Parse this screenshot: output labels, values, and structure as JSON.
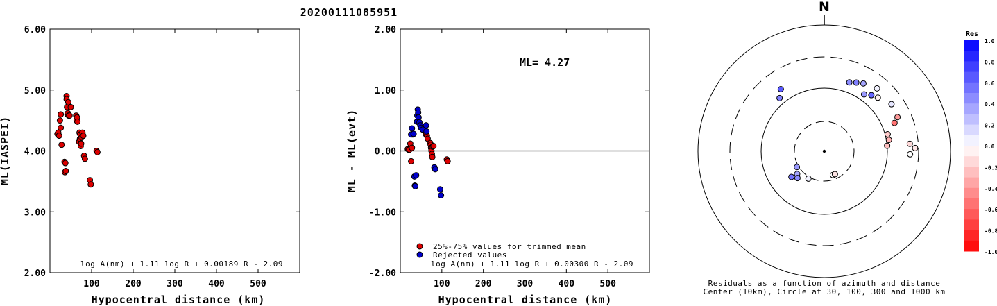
{
  "title": "20200111085951",
  "colors": {
    "red": "#dd0000",
    "blue": "#0000cc",
    "black": "#000000"
  },
  "chart_data": [
    {
      "type": "scatter",
      "ylabel": "ML(IASPEI)",
      "xlabel": "Hypocentral distance (km)",
      "xlim": [
        0,
        600
      ],
      "ylim": [
        2.0,
        6.0
      ],
      "x_ticks": [
        "100",
        "200",
        "300",
        "400",
        "500"
      ],
      "y_ticks": [
        "2.00",
        "3.00",
        "4.00",
        "5.00",
        "6.00"
      ],
      "formula": "log A(nm) + 1.11 log R + 0.00189 R - 2.09",
      "series": [
        {
          "color": "#dd0000",
          "points": [
            [
              18,
              4.28
            ],
            [
              20,
              4.3
            ],
            [
              22,
              4.25
            ],
            [
              24,
              4.5
            ],
            [
              26,
              4.6
            ],
            [
              26,
              4.38
            ],
            [
              28,
              4.1
            ],
            [
              35,
              3.82
            ],
            [
              37,
              3.8
            ],
            [
              36,
              3.65
            ],
            [
              38,
              3.67
            ],
            [
              40,
              4.9
            ],
            [
              40,
              4.85
            ],
            [
              41,
              4.72
            ],
            [
              42,
              4.6
            ],
            [
              43,
              4.62
            ],
            [
              44,
              4.8
            ],
            [
              45,
              4.58
            ],
            [
              47,
              4.58
            ],
            [
              50,
              4.72
            ],
            [
              63,
              4.58
            ],
            [
              64,
              4.5
            ],
            [
              65,
              4.55
            ],
            [
              66,
              4.48
            ],
            [
              70,
              4.15
            ],
            [
              71,
              4.3
            ],
            [
              72,
              4.2
            ],
            [
              73,
              4.27
            ],
            [
              74,
              4.08
            ],
            [
              75,
              4.12
            ],
            [
              76,
              4.22
            ],
            [
              78,
              4.3
            ],
            [
              80,
              4.25
            ],
            [
              82,
              3.92
            ],
            [
              84,
              3.87
            ],
            [
              96,
              3.52
            ],
            [
              98,
              3.45
            ],
            [
              112,
              4.0
            ],
            [
              114,
              3.98
            ]
          ]
        }
      ]
    },
    {
      "type": "scatter",
      "ylabel": "ML - ML(evt)",
      "xlabel": "Hypocentral distance (km)",
      "xlim": [
        0,
        600
      ],
      "ylim": [
        -2.0,
        2.0
      ],
      "x_ticks": [
        "100",
        "200",
        "300",
        "400",
        "500"
      ],
      "y_ticks": [
        "-2.00",
        "-1.00",
        "0.00",
        "1.00",
        "2.00"
      ],
      "annotation": "ML= 4.27",
      "formula": "log A(nm) + 1.11 log R + 0.00300 R - 2.09",
      "hline": 0.0,
      "legend": {
        "position": "bottom-left",
        "items": [
          {
            "label": "25%-75% values for trimmed mean",
            "color": "#dd0000"
          },
          {
            "label": "Rejected values",
            "color": "#0000cc"
          }
        ]
      },
      "series": [
        {
          "name": "25%-75% values for trimmed mean",
          "color": "#dd0000",
          "points": [
            [
              18,
              0.03
            ],
            [
              20,
              0.02
            ],
            [
              22,
              0.02
            ],
            [
              24,
              0.12
            ],
            [
              26,
              -0.17
            ],
            [
              28,
              0.05
            ],
            [
              30,
              0.27
            ],
            [
              62,
              0.27
            ],
            [
              64,
              0.25
            ],
            [
              66,
              0.2
            ],
            [
              72,
              0.13
            ],
            [
              73,
              0.1
            ],
            [
              74,
              0.05
            ],
            [
              75,
              0.0
            ],
            [
              76,
              -0.05
            ],
            [
              77,
              -0.1
            ],
            [
              78,
              0.07
            ],
            [
              80,
              0.08
            ],
            [
              112,
              -0.14
            ],
            [
              114,
              -0.17
            ]
          ]
        },
        {
          "name": "Rejected values",
          "color": "#0000cc",
          "points": [
            [
              26,
              0.27
            ],
            [
              28,
              0.37
            ],
            [
              32,
              0.28
            ],
            [
              34,
              -0.42
            ],
            [
              35,
              -0.57
            ],
            [
              36,
              -0.58
            ],
            [
              38,
              -0.4
            ],
            [
              40,
              0.48
            ],
            [
              41,
              0.58
            ],
            [
              42,
              0.68
            ],
            [
              43,
              0.63
            ],
            [
              44,
              0.55
            ],
            [
              46,
              0.47
            ],
            [
              48,
              0.42
            ],
            [
              50,
              0.38
            ],
            [
              54,
              0.35
            ],
            [
              62,
              0.42
            ],
            [
              63,
              0.32
            ],
            [
              82,
              -0.27
            ],
            [
              84,
              -0.3
            ],
            [
              96,
              -0.63
            ],
            [
              98,
              -0.73
            ]
          ]
        }
      ]
    }
  ],
  "map": {
    "north_label": "N",
    "caption_line1": "Residuals as a function of azimuth and distance",
    "caption_line2": "Center (10km), Circle at 30, 100, 300 and 1000 km",
    "stations": [
      {
        "az": 160,
        "frac": 0.2,
        "res": 0.0
      },
      {
        "az": 155,
        "frac": 0.2,
        "res": -0.1
      },
      {
        "az": 210,
        "frac": 0.25,
        "res": 0.05
      },
      {
        "az": 230,
        "frac": 0.28,
        "res": 0.35
      },
      {
        "az": 225,
        "frac": 0.3,
        "res": 0.45
      },
      {
        "az": 232,
        "frac": 0.33,
        "res": 0.55
      },
      {
        "az": 240,
        "frac": 0.25,
        "res": 0.4
      },
      {
        "az": 320,
        "frac": 0.55,
        "res": 0.5
      },
      {
        "az": 325,
        "frac": 0.6,
        "res": 0.65
      },
      {
        "az": 20,
        "frac": 0.58,
        "res": 0.45
      },
      {
        "az": 25,
        "frac": 0.6,
        "res": 0.5
      },
      {
        "az": 30,
        "frac": 0.62,
        "res": 0.35
      },
      {
        "az": 35,
        "frac": 0.55,
        "res": 0.4
      },
      {
        "az": 40,
        "frac": 0.58,
        "res": 0.6
      },
      {
        "az": 45,
        "frac": 0.6,
        "res": -0.05
      },
      {
        "az": 40,
        "frac": 0.65,
        "res": 0.05
      },
      {
        "az": 55,
        "frac": 0.65,
        "res": 0.1
      },
      {
        "az": 75,
        "frac": 0.52,
        "res": -0.2
      },
      {
        "az": 80,
        "frac": 0.52,
        "res": -0.3
      },
      {
        "az": 85,
        "frac": 0.5,
        "res": -0.25
      },
      {
        "az": 68,
        "frac": 0.6,
        "res": -0.55
      },
      {
        "az": 65,
        "frac": 0.64,
        "res": -0.4
      },
      {
        "az": 85,
        "frac": 0.68,
        "res": -0.15
      },
      {
        "az": 88,
        "frac": 0.72,
        "res": -0.1
      },
      {
        "az": 92,
        "frac": 0.68,
        "res": 0.0
      }
    ]
  },
  "colorbar": {
    "title": "Res",
    "ticks": [
      "1.0",
      "0.8",
      "0.6",
      "0.4",
      "0.2",
      "0.0",
      "-0.2",
      "-0.4",
      "-0.6",
      "-0.8",
      "-1.0"
    ]
  }
}
